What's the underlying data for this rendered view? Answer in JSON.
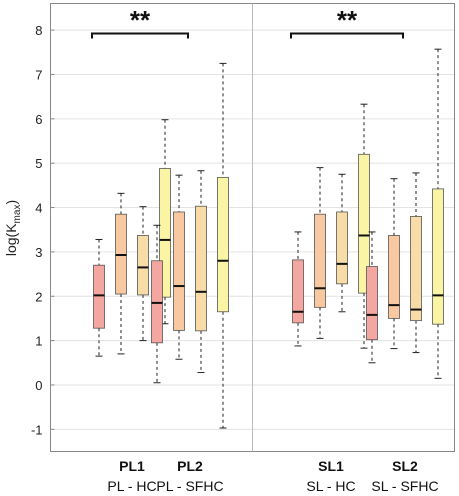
{
  "chart_data": {
    "type": "box",
    "ylabel_main": "log(K",
    "ylabel_sub": "max",
    "ylabel_end": ")",
    "ylim": [
      -1.5,
      8.6
    ],
    "yticks": [
      -1,
      0,
      1,
      2,
      3,
      4,
      5,
      6,
      7,
      8
    ],
    "grid": true,
    "colors": [
      "#f4a6a0",
      "#f8c9a0",
      "#f8dca8",
      "#faf5a4"
    ],
    "panels": [
      {
        "groups": [
          {
            "label": "PL1",
            "sublabel": "PL - HC",
            "boxes": [
              {
                "min": 0.65,
                "q1": 1.28,
                "median": 2.02,
                "q3": 2.7,
                "max": 3.28
              },
              {
                "min": 0.7,
                "q1": 2.05,
                "median": 2.93,
                "q3": 3.85,
                "max": 4.32
              },
              {
                "min": 1.0,
                "q1": 2.03,
                "median": 2.65,
                "q3": 3.37,
                "max": 4.02
              },
              {
                "min": 1.38,
                "q1": 1.98,
                "median": 3.27,
                "q3": 4.88,
                "max": 5.98
              }
            ]
          },
          {
            "label": "PL2",
            "sublabel": "PL - SFHC",
            "boxes": [
              {
                "min": 0.05,
                "q1": 0.95,
                "median": 1.85,
                "q3": 2.8,
                "max": 3.6
              },
              {
                "min": 0.58,
                "q1": 1.23,
                "median": 2.23,
                "q3": 3.9,
                "max": 4.73
              },
              {
                "min": 0.28,
                "q1": 1.22,
                "median": 2.1,
                "q3": 4.03,
                "max": 4.83
              },
              {
                "min": -0.97,
                "q1": 1.65,
                "median": 2.8,
                "q3": 4.68,
                "max": 7.25
              }
            ]
          }
        ],
        "significance": "**"
      },
      {
        "groups": [
          {
            "label": "SL1",
            "sublabel": "SL - HC",
            "boxes": [
              {
                "min": 0.88,
                "q1": 1.4,
                "median": 1.65,
                "q3": 2.82,
                "max": 3.45
              },
              {
                "min": 1.05,
                "q1": 1.75,
                "median": 2.18,
                "q3": 3.85,
                "max": 4.9
              },
              {
                "min": 1.65,
                "q1": 2.28,
                "median": 2.73,
                "q3": 3.9,
                "max": 4.75
              },
              {
                "min": 0.83,
                "q1": 2.07,
                "median": 3.37,
                "q3": 5.2,
                "max": 6.33
              }
            ]
          },
          {
            "label": "SL2",
            "sublabel": "SL - SFHC",
            "boxes": [
              {
                "min": 0.5,
                "q1": 1.02,
                "median": 1.58,
                "q3": 2.67,
                "max": 3.45
              },
              {
                "min": 0.82,
                "q1": 1.5,
                "median": 1.8,
                "q3": 3.37,
                "max": 4.65
              },
              {
                "min": 0.73,
                "q1": 1.45,
                "median": 1.7,
                "q3": 3.8,
                "max": 4.78
              },
              {
                "min": 0.15,
                "q1": 1.37,
                "median": 2.02,
                "q3": 4.42,
                "max": 7.57
              }
            ]
          }
        ],
        "significance": "**"
      }
    ]
  }
}
